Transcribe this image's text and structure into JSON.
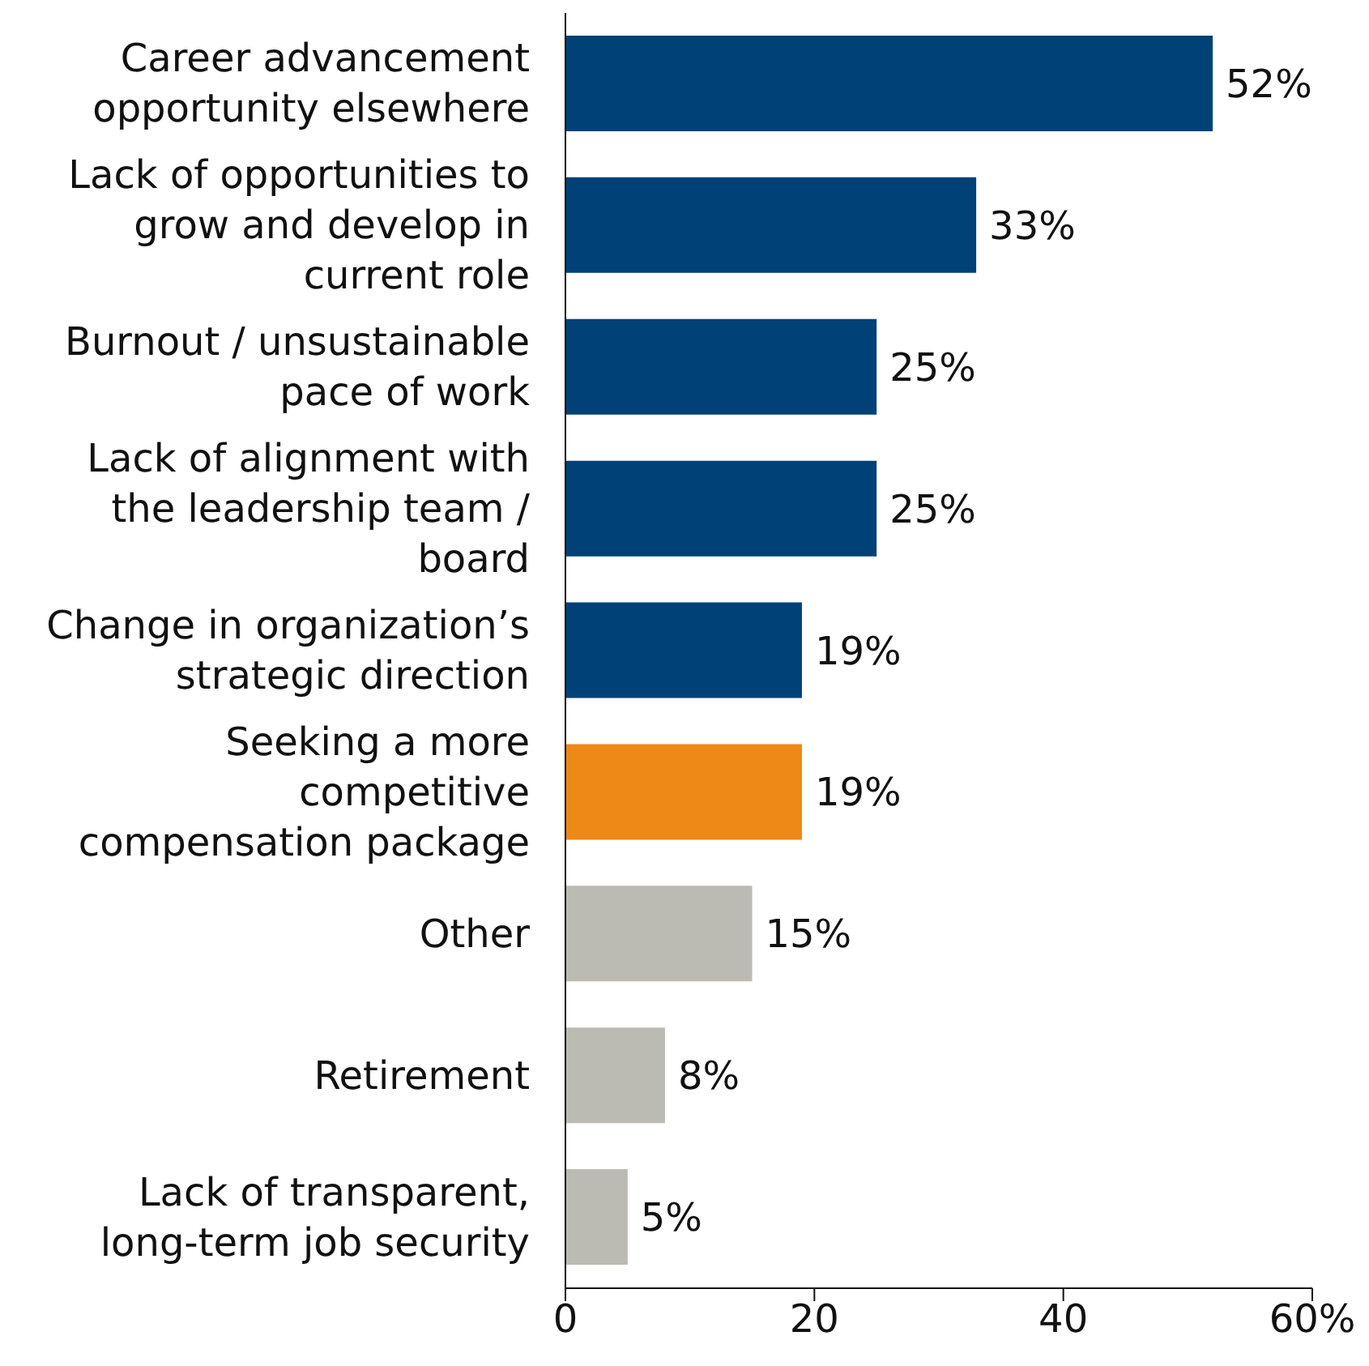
{
  "chart_data": {
    "type": "bar",
    "orientation": "horizontal",
    "categories": [
      "Career advancement opportunity elsewhere",
      "Lack of opportunities to grow and develop in current role",
      "Burnout / unsustainable pace of work",
      "Lack of alignment with the leadership team / board",
      "Change in organization’s strategic direction",
      "Seeking a more competitive compensation package",
      "Other",
      "Retirement",
      "Lack of transparent, long-term job security"
    ],
    "values": [
      52,
      33,
      25,
      25,
      19,
      19,
      15,
      8,
      5
    ],
    "colors": [
      "#004178",
      "#004178",
      "#004178",
      "#004178",
      "#004178",
      "#ee8816",
      "#bcbbb3",
      "#bcbbb3",
      "#bcbbb3"
    ],
    "value_labels": [
      "52%",
      "33%",
      "25%",
      "25%",
      "19%",
      "19%",
      "15%",
      "8%",
      "5%"
    ],
    "xlim": [
      0,
      60
    ],
    "xticks": [
      0,
      20,
      40,
      {
        "value": 60,
        "label": "60%"
      }
    ],
    "grid": false,
    "legend": false
  }
}
